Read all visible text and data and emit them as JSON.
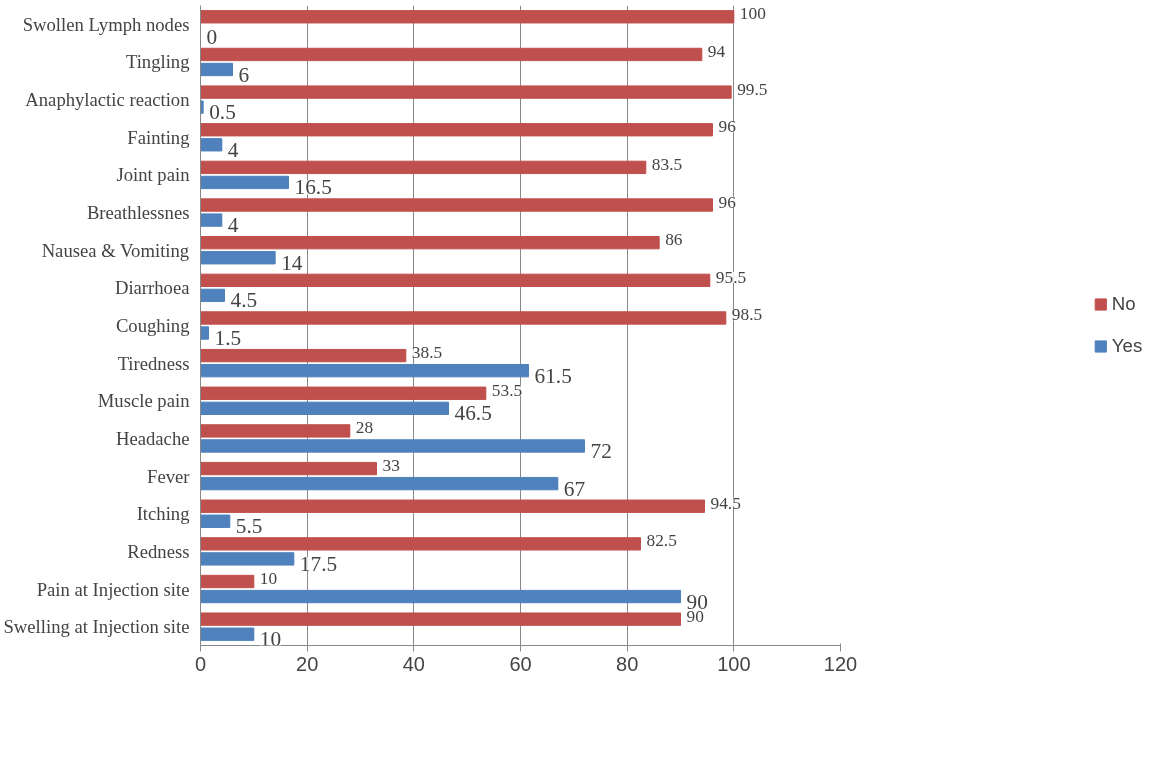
{
  "chart_data": {
    "type": "bar",
    "orientation": "horizontal",
    "categories": [
      "Swollen Lymph nodes",
      "Tingling",
      "Anaphylactic reaction",
      "Fainting",
      "Joint pain",
      "Breathlessnes",
      "Nausea & Vomiting",
      "Diarrhoea",
      "Coughing",
      "Tiredness",
      "Muscle pain",
      "Headache",
      "Fever",
      "Itching",
      "Redness",
      "Pain at Injection site",
      "Swelling at Injection site"
    ],
    "series": [
      {
        "name": "No",
        "color": "#c0504d",
        "values": [
          100,
          94,
          99.5,
          96,
          83.5,
          96,
          86,
          95.5,
          98.5,
          38.5,
          53.5,
          28,
          33,
          94.5,
          82.5,
          10,
          90
        ]
      },
      {
        "name": "Yes",
        "color": "#4f81bd",
        "values": [
          0,
          6,
          0.5,
          4,
          16.5,
          4,
          14,
          4.5,
          1.5,
          61.5,
          46.5,
          72,
          67,
          5.5,
          17.5,
          90,
          10
        ]
      }
    ],
    "xlim": [
      0,
      120
    ],
    "xticks": [
      0,
      20,
      40,
      60,
      80,
      100,
      120
    ],
    "grid": "x",
    "legend": "right",
    "data_labels": true
  }
}
